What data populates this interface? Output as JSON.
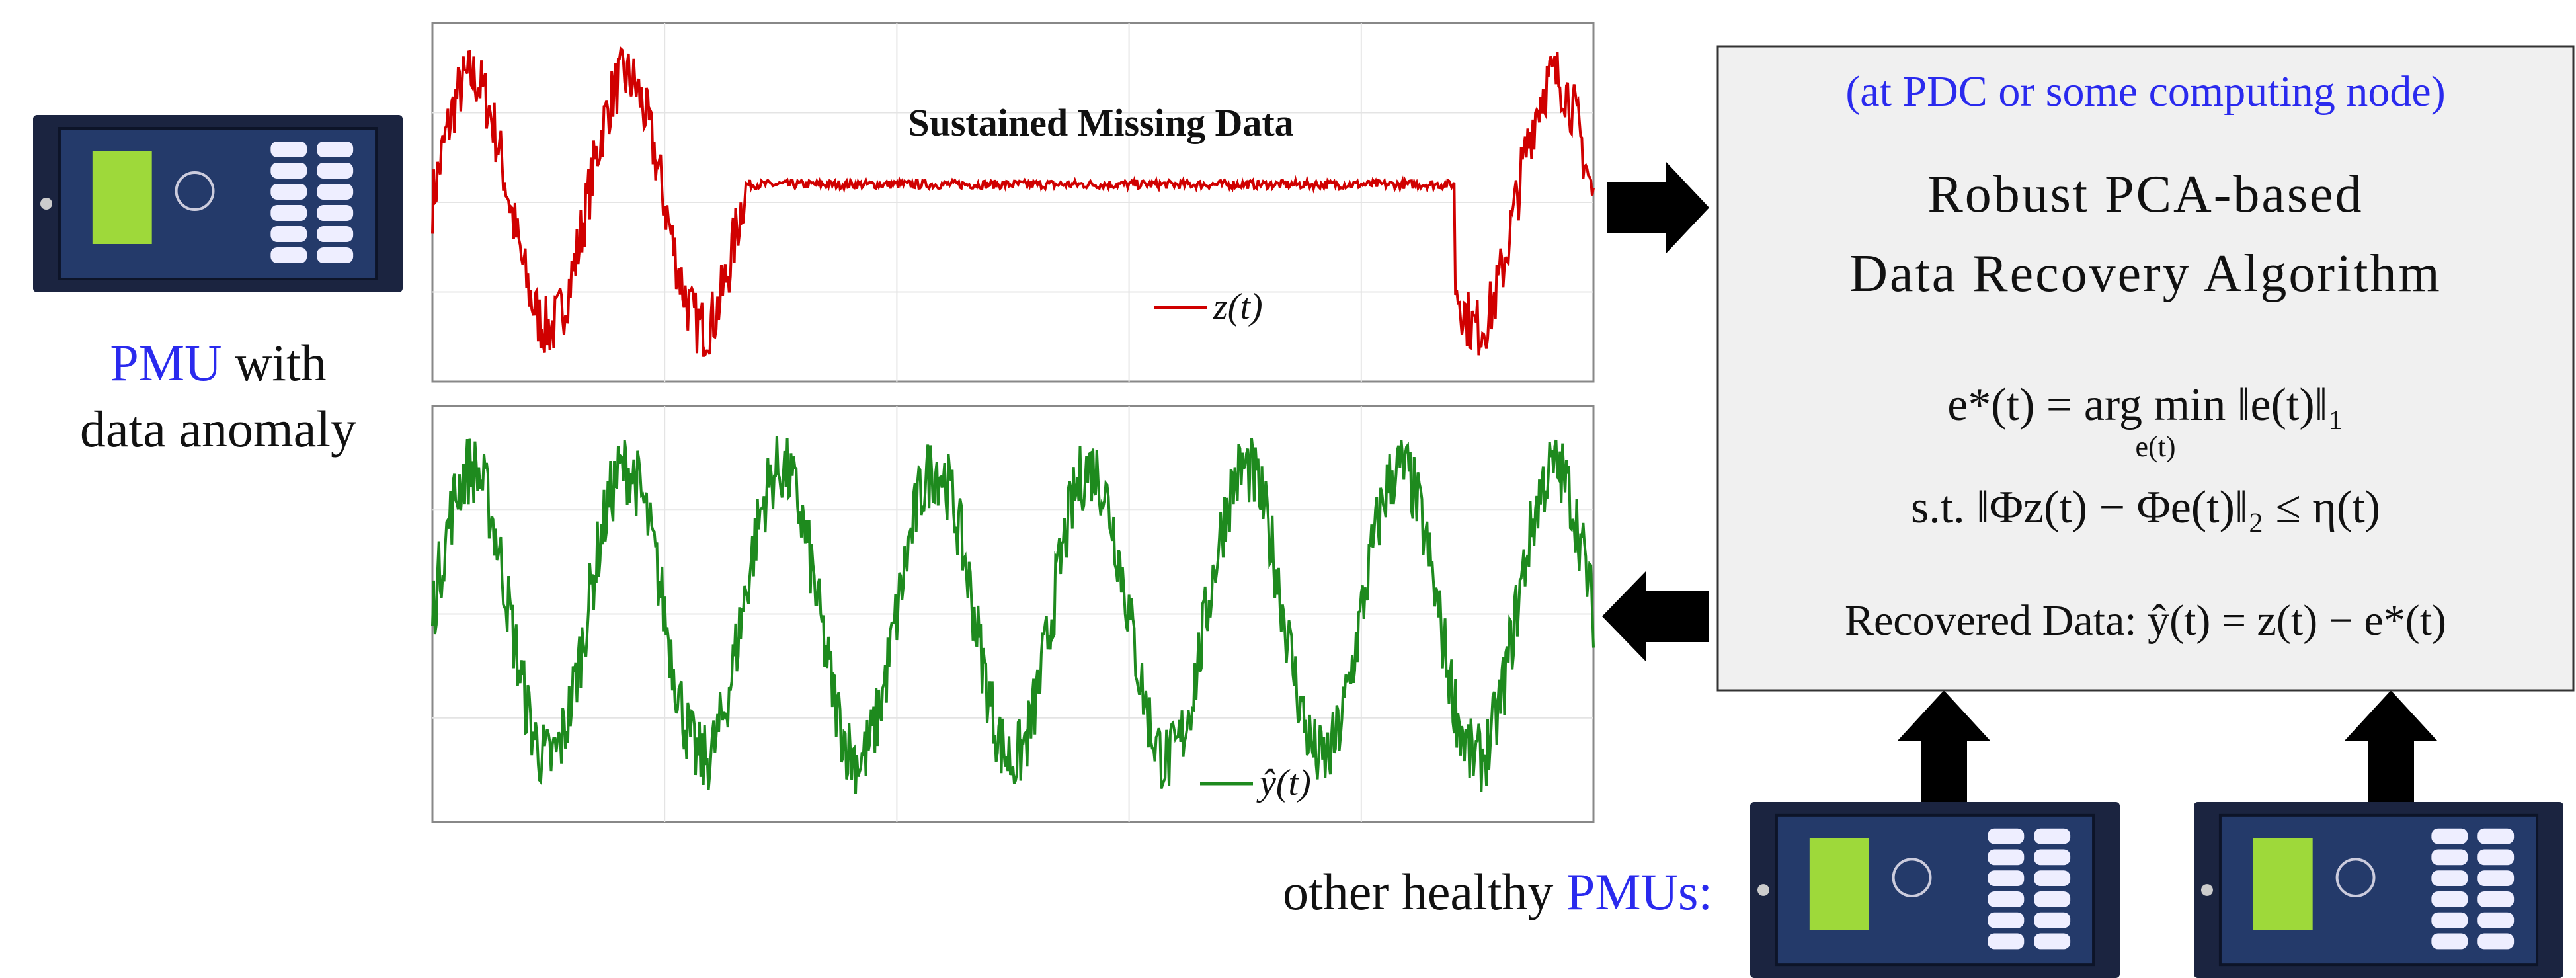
{
  "left_device": {
    "label_highlight": "PMU",
    "label_rest": " with",
    "label_line2": "data anomaly"
  },
  "plot_top": {
    "annotation": "Sustained Missing Data",
    "legend": "z(t)"
  },
  "plot_bottom": {
    "legend": "ŷ(t)"
  },
  "algorithm_box": {
    "location": "(at PDC or some computing node)",
    "title_line1": "Robust PCA-based",
    "title_line2": "Data Recovery Algorithm",
    "equation_line1": "e*(t) = arg min ‖e(t)‖₁",
    "equation_subscript": "e(t)",
    "equation_line2": "s.t. ‖Φz(t) − Φe(t)‖₂ ≤ η(t)",
    "recovered": "Recovered Data: ŷ(t) = z(t) − e*(t)"
  },
  "bottom": {
    "label": "other healthy ",
    "label_highlight": "PMUs:"
  }
}
